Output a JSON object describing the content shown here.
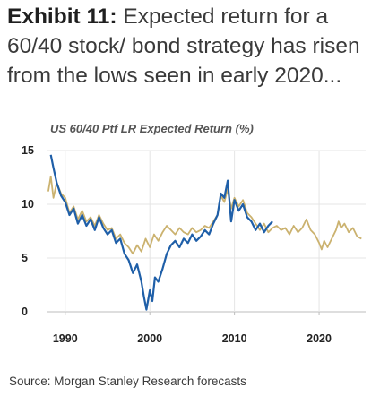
{
  "headline": {
    "exhibit": "Exhibit 11:",
    "text": "Expected return for a 60/40 stock/ bond strategy has risen from the lows seen in early 2020..."
  },
  "source": "Source: Morgan Stanley Research forecasts",
  "colors": {
    "blue": "#1f5fa8",
    "gold": "#cbb26f",
    "grid": "#e4e4e4",
    "axis": "#bdbdbd"
  },
  "chart_data": {
    "type": "line",
    "title": "US 60/40 Ptf LR Expected Return (%)",
    "xlabel": "",
    "ylabel": "",
    "xlim": [
      1987.8,
      2025.5
    ],
    "ylim": [
      0,
      15
    ],
    "x_ticks": [
      1990,
      2000,
      2010,
      2020
    ],
    "y_ticks": [
      0,
      5,
      10,
      15
    ],
    "grid": true,
    "series": [
      {
        "color": "#cbb26f",
        "x": [
          1988.0,
          1988.3,
          1988.6,
          1989.0,
          1989.5,
          1990.0,
          1990.5,
          1991.0,
          1991.5,
          1992.0,
          1992.5,
          1993.0,
          1993.5,
          1994.0,
          1994.5,
          1995.0,
          1995.5,
          1996.0,
          1996.5,
          1997.0,
          1997.5,
          1998.0,
          1998.5,
          1999.0,
          1999.5,
          2000.0,
          2000.5,
          2001.0,
          2001.5,
          2002.0,
          2002.5,
          2003.0,
          2003.5,
          2004.0,
          2004.5,
          2005.0,
          2005.5,
          2006.0,
          2006.5,
          2007.0,
          2007.5,
          2008.0,
          2008.4,
          2008.8,
          2009.2,
          2009.6,
          2010.0,
          2010.5,
          2011.0,
          2011.5,
          2012.0,
          2012.5,
          2013.0,
          2013.5,
          2014.0,
          2014.5,
          2015.0,
          2015.5,
          2016.0,
          2016.5,
          2017.0,
          2017.5,
          2018.0,
          2018.5,
          2019.0,
          2019.5,
          2020.0,
          2020.3,
          2020.6,
          2021.0,
          2021.5,
          2022.0,
          2022.3,
          2022.6,
          2023.0,
          2023.5,
          2024.0,
          2024.5,
          2025.0
        ],
        "y": [
          11.2,
          12.6,
          10.6,
          12.0,
          11.0,
          10.6,
          9.2,
          9.8,
          8.6,
          9.4,
          8.4,
          8.8,
          8.0,
          9.0,
          8.2,
          7.6,
          7.8,
          6.8,
          7.2,
          6.4,
          6.0,
          5.4,
          6.2,
          5.6,
          6.8,
          6.0,
          7.2,
          6.6,
          7.4,
          8.0,
          7.6,
          7.2,
          7.8,
          7.4,
          7.2,
          7.8,
          7.4,
          7.6,
          8.0,
          7.8,
          8.4,
          9.0,
          10.8,
          10.2,
          11.4,
          9.6,
          10.6,
          9.8,
          10.4,
          9.2,
          8.8,
          8.2,
          7.6,
          8.2,
          7.4,
          7.8,
          8.0,
          7.6,
          7.8,
          7.2,
          8.0,
          7.4,
          7.8,
          8.6,
          7.6,
          7.2,
          6.4,
          5.8,
          6.6,
          6.0,
          6.8,
          7.6,
          8.4,
          7.8,
          8.2,
          7.4,
          7.8,
          7.0,
          6.8
        ]
      },
      {
        "color": "#1f5fa8",
        "x": [
          1988.3,
          1988.6,
          1989.0,
          1989.5,
          1990.0,
          1990.5,
          1991.0,
          1991.5,
          1992.0,
          1992.5,
          1993.0,
          1993.5,
          1994.0,
          1994.5,
          1995.0,
          1995.5,
          1996.0,
          1996.5,
          1997.0,
          1997.5,
          1998.0,
          1998.5,
          1999.0,
          1999.3,
          1999.6,
          2000.0,
          2000.3,
          2000.6,
          2001.0,
          2001.5,
          2002.0,
          2002.5,
          2003.0,
          2003.5,
          2004.0,
          2004.5,
          2005.0,
          2005.5,
          2006.0,
          2006.5,
          2007.0,
          2007.5,
          2008.0,
          2008.4,
          2008.8,
          2009.2,
          2009.6,
          2010.0,
          2010.5,
          2011.0,
          2011.5,
          2012.0,
          2012.5,
          2013.0,
          2013.5,
          2014.0,
          2014.5
        ],
        "y": [
          14.6,
          13.4,
          12.0,
          10.8,
          10.2,
          9.0,
          9.6,
          8.2,
          9.0,
          8.0,
          8.6,
          7.6,
          8.8,
          7.8,
          7.2,
          7.6,
          6.4,
          6.8,
          5.4,
          4.8,
          3.6,
          4.4,
          2.8,
          1.4,
          0.2,
          2.0,
          1.0,
          3.2,
          2.8,
          4.0,
          5.4,
          6.2,
          6.6,
          6.0,
          6.8,
          6.4,
          7.2,
          6.6,
          7.0,
          7.6,
          7.2,
          8.2,
          9.0,
          11.0,
          10.6,
          12.2,
          8.4,
          10.4,
          9.4,
          10.0,
          8.8,
          8.4,
          7.6,
          8.2,
          7.4,
          8.0,
          8.4
        ]
      }
    ]
  }
}
